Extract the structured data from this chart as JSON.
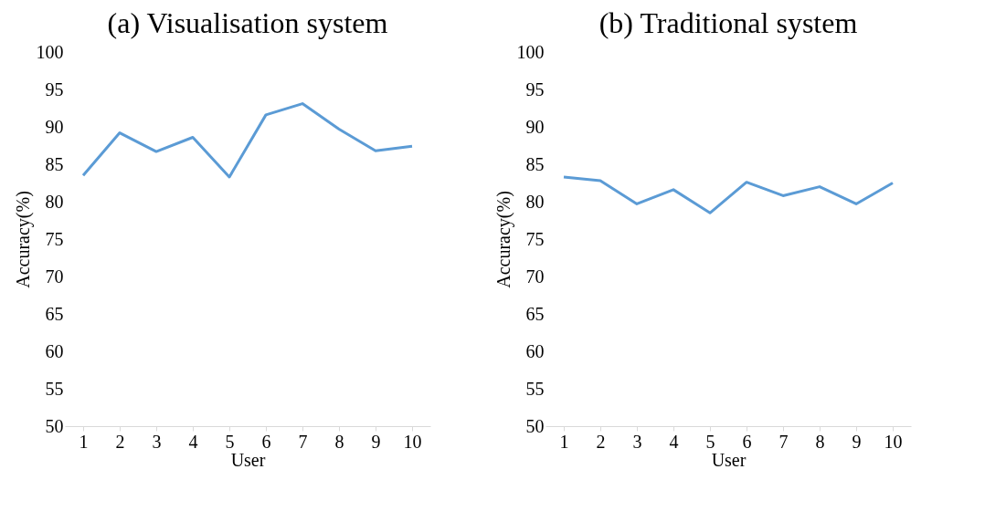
{
  "chart_data": [
    {
      "type": "line",
      "title": "(a) Visualisation system",
      "xlabel": "User",
      "ylabel": "Accuracy(%)",
      "categories": [
        "1",
        "2",
        "3",
        "4",
        "5",
        "6",
        "7",
        "8",
        "9",
        "10"
      ],
      "series": [
        {
          "color": "#5b9bd5",
          "values": [
            83.5,
            89.2,
            86.7,
            88.6,
            83.3,
            91.6,
            93.1,
            89.7,
            86.8,
            87.4
          ]
        }
      ],
      "ylim": [
        50,
        100
      ],
      "yticks": [
        50,
        55,
        60,
        65,
        70,
        75,
        80,
        85,
        90,
        95,
        100
      ],
      "grid": false,
      "marker": "none",
      "line_style": "solid"
    },
    {
      "type": "line",
      "title": "(b) Traditional system",
      "xlabel": "User",
      "ylabel": "Accuracy(%)",
      "categories": [
        "1",
        "2",
        "3",
        "4",
        "5",
        "6",
        "7",
        "8",
        "9",
        "10"
      ],
      "series": [
        {
          "color": "#5b9bd5",
          "values": [
            83.3,
            82.8,
            79.7,
            81.6,
            78.5,
            82.6,
            80.8,
            82.0,
            79.7,
            82.5
          ]
        }
      ],
      "ylim": [
        50,
        100
      ],
      "yticks": [
        50,
        55,
        60,
        65,
        70,
        75,
        80,
        85,
        90,
        95,
        100
      ],
      "grid": false,
      "marker": "none",
      "line_style": "solid"
    }
  ]
}
